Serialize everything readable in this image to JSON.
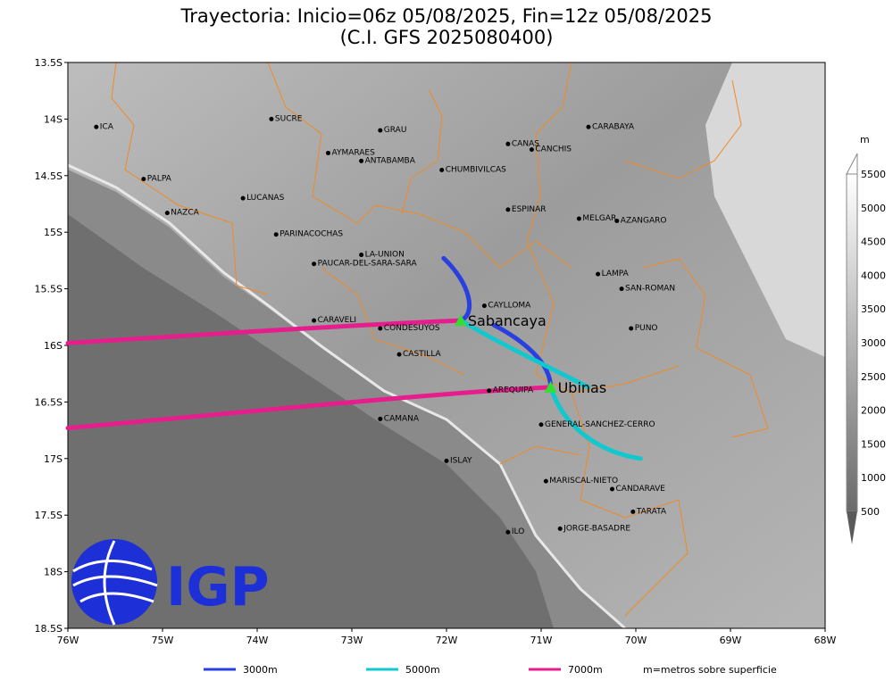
{
  "title": {
    "line1": "Trayectoria: Inicio=06z 05/08/2025, Fin=12z 05/08/2025",
    "line2": "(C.I. GFS 2025080400)"
  },
  "map": {
    "lon_range": [
      -76,
      -68
    ],
    "lat_range": [
      -18.5,
      -13.5
    ],
    "y_ticks": [
      "13.5S",
      "14S",
      "14.5S",
      "15S",
      "15.5S",
      "16S",
      "16.5S",
      "17S",
      "17.5S",
      "18S",
      "18.5S"
    ],
    "x_ticks": [
      "76W",
      "75W",
      "74W",
      "73W",
      "72W",
      "71W",
      "70W",
      "69W",
      "68W"
    ],
    "places": [
      {
        "name": "ICA",
        "lon": -75.7,
        "lat": -14.07
      },
      {
        "name": "SUCRE",
        "lon": -73.85,
        "lat": -14.0
      },
      {
        "name": "GRAU",
        "lon": -72.7,
        "lat": -14.1
      },
      {
        "name": "CARABAYA",
        "lon": -70.5,
        "lat": -14.07
      },
      {
        "name": "CANAS",
        "lon": -71.35,
        "lat": -14.22
      },
      {
        "name": "CANCHIS",
        "lon": -71.1,
        "lat": -14.27
      },
      {
        "name": "AYMARAES",
        "lon": -73.25,
        "lat": -14.3
      },
      {
        "name": "ANTABAMBA",
        "lon": -72.9,
        "lat": -14.37
      },
      {
        "name": "CHUMBIVILCAS",
        "lon": -72.05,
        "lat": -14.45
      },
      {
        "name": "PALPA",
        "lon": -75.2,
        "lat": -14.53
      },
      {
        "name": "LUCANAS",
        "lon": -74.15,
        "lat": -14.7
      },
      {
        "name": "NAZCA",
        "lon": -74.95,
        "lat": -14.83
      },
      {
        "name": "ESPINAR",
        "lon": -71.35,
        "lat": -14.8
      },
      {
        "name": "MELGAR",
        "lon": -70.6,
        "lat": -14.88
      },
      {
        "name": "AZANGARO",
        "lon": -70.2,
        "lat": -14.9
      },
      {
        "name": "PARINACOCHAS",
        "lon": -73.8,
        "lat": -15.02
      },
      {
        "name": "LA-UNION",
        "lon": -72.9,
        "lat": -15.2
      },
      {
        "name": "PAUCAR-DEL-SARA-SARA",
        "lon": -73.4,
        "lat": -15.28
      },
      {
        "name": "LAMPA",
        "lon": -70.4,
        "lat": -15.37
      },
      {
        "name": "SAN-ROMAN",
        "lon": -70.15,
        "lat": -15.5
      },
      {
        "name": "CAYLLOMA",
        "lon": -71.6,
        "lat": -15.65
      },
      {
        "name": "CARAVELI",
        "lon": -73.4,
        "lat": -15.78
      },
      {
        "name": "CONDESUYOS",
        "lon": -72.7,
        "lat": -15.85
      },
      {
        "name": "PUNO",
        "lon": -70.05,
        "lat": -15.85
      },
      {
        "name": "CASTILLA",
        "lon": -72.5,
        "lat": -16.08
      },
      {
        "name": "AREQUIPA",
        "lon": -71.55,
        "lat": -16.4
      },
      {
        "name": "CAMANA",
        "lon": -72.7,
        "lat": -16.65
      },
      {
        "name": "GENERAL-SANCHEZ-CERRO",
        "lon": -71.0,
        "lat": -16.7
      },
      {
        "name": "ISLAY",
        "lon": -72.0,
        "lat": -17.02
      },
      {
        "name": "MARISCAL-NIETO",
        "lon": -70.95,
        "lat": -17.2
      },
      {
        "name": "CANDARAVE",
        "lon": -70.25,
        "lat": -17.27
      },
      {
        "name": "TARATA",
        "lon": -70.03,
        "lat": -17.47
      },
      {
        "name": "ILO",
        "lon": -71.35,
        "lat": -17.65
      },
      {
        "name": "JORGE-BASADRE",
        "lon": -70.8,
        "lat": -17.62
      }
    ],
    "volcanoes": [
      {
        "name": "Sabancaya",
        "lon": -71.85,
        "lat": -15.78
      },
      {
        "name": "Ubinas",
        "lon": -70.9,
        "lat": -16.37
      }
    ]
  },
  "trajectories": [
    {
      "level": "3000m",
      "color": "#2a3fe0",
      "paths": [
        [
          [
            -72.03,
            -15.23
          ],
          [
            -71.75,
            -15.45
          ],
          [
            -71.68,
            -15.72
          ],
          [
            -71.85,
            -15.78
          ]
        ],
        [
          [
            -71.5,
            -15.82
          ],
          [
            -71.2,
            -15.95
          ],
          [
            -70.9,
            -16.15
          ],
          [
            -70.9,
            -16.37
          ]
        ]
      ]
    },
    {
      "level": "5000m",
      "color": "#12c8cf",
      "paths": [
        [
          [
            -71.85,
            -15.78
          ],
          [
            -71.4,
            -16.0
          ],
          [
            -70.9,
            -16.2
          ],
          [
            -70.5,
            -16.37
          ]
        ],
        [
          [
            -70.9,
            -16.37
          ],
          [
            -70.75,
            -16.75
          ],
          [
            -70.35,
            -16.95
          ],
          [
            -69.95,
            -17.0
          ]
        ]
      ]
    },
    {
      "level": "7000m",
      "color": "#e61d8c",
      "paths": [
        [
          [
            -71.85,
            -15.78
          ],
          [
            -73.0,
            -15.82
          ],
          [
            -74.5,
            -15.9
          ],
          [
            -76.0,
            -15.98
          ]
        ],
        [
          [
            -70.9,
            -16.37
          ],
          [
            -72.3,
            -16.43
          ],
          [
            -74.2,
            -16.6
          ],
          [
            -76.0,
            -16.73
          ]
        ]
      ]
    }
  ],
  "colorbar": {
    "unit": "m",
    "labels": [
      "500",
      "1000",
      "1500",
      "2000",
      "2500",
      "3000",
      "3500",
      "4000",
      "4500",
      "5000",
      "5500"
    ]
  },
  "legend": {
    "items": [
      {
        "label": "3000m",
        "color": "#2a3fe0"
      },
      {
        "label": "5000m",
        "color": "#12c8cf"
      },
      {
        "label": "7000m",
        "color": "#e61d8c"
      }
    ],
    "note": "m=metros sobre superficie"
  },
  "logo": {
    "text": "IGP",
    "color": "#1d2fd6"
  }
}
